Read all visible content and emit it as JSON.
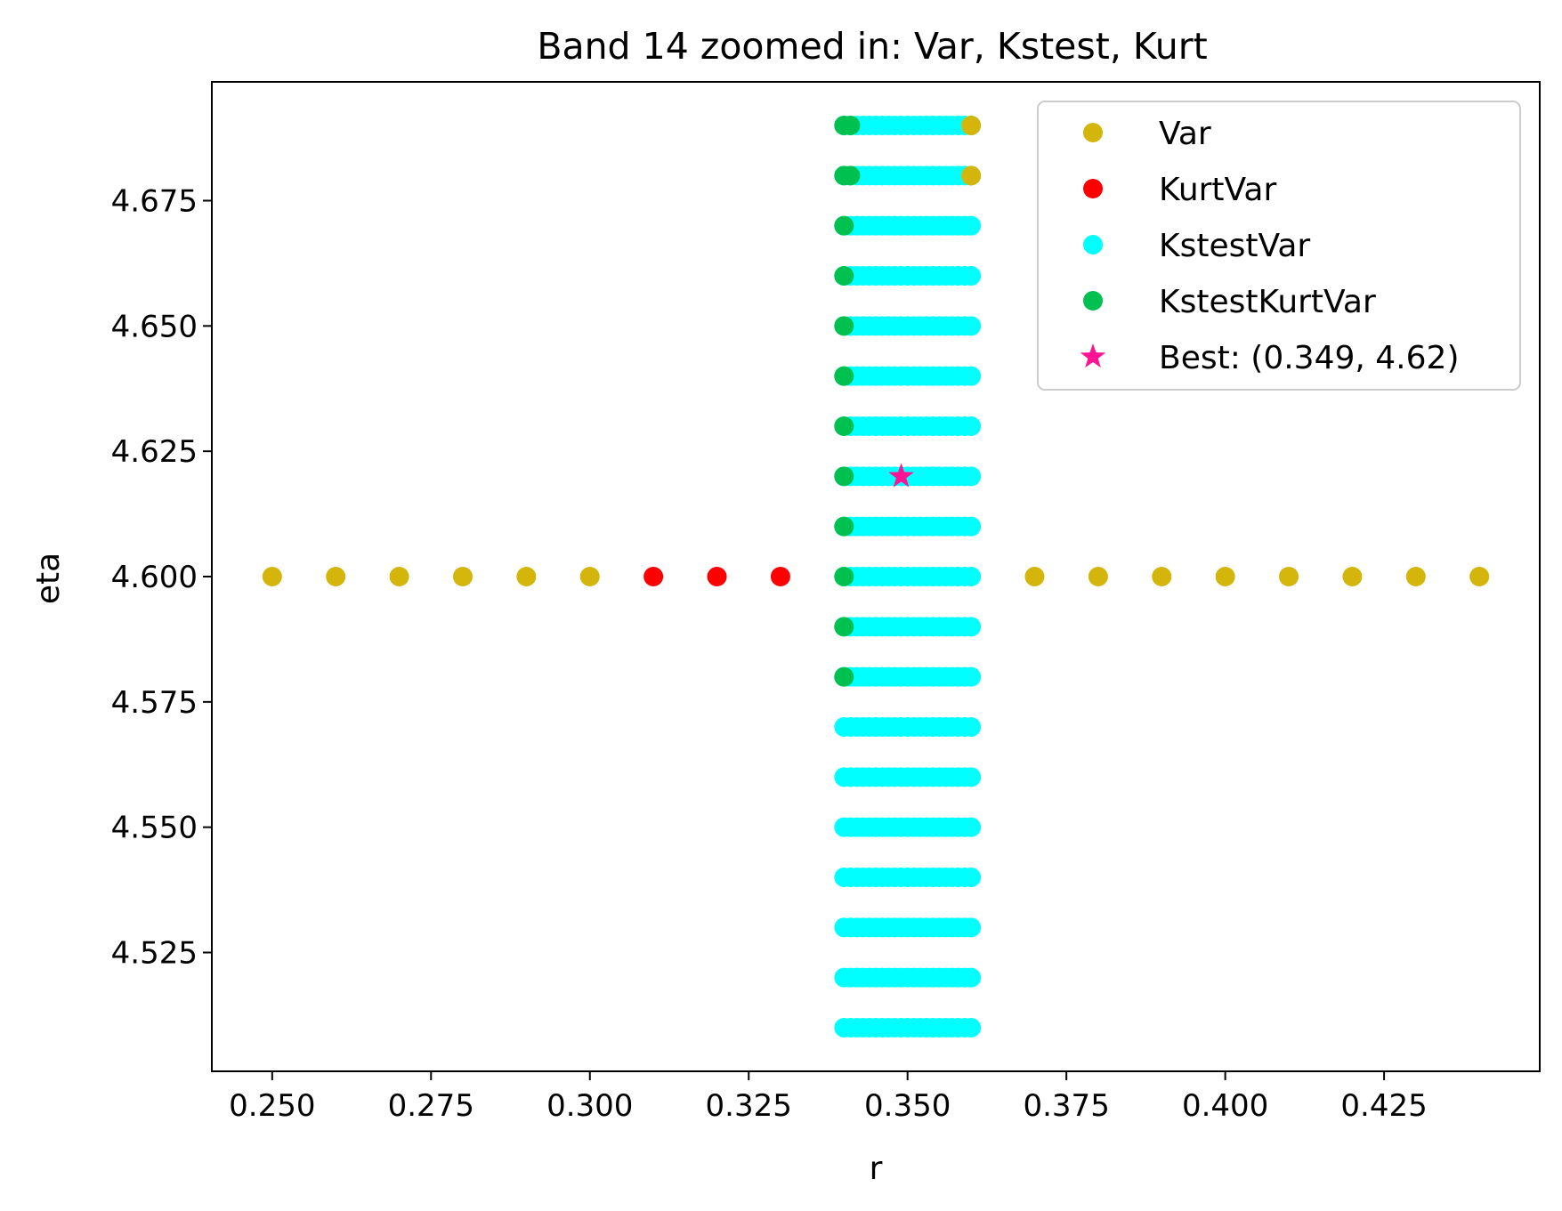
{
  "chart_data": {
    "type": "scatter",
    "title": "Band 14 zoomed in: Var, Kstest, Kurt",
    "xlabel": "r",
    "ylabel": "eta",
    "xlim": [
      0.2405,
      0.4495
    ],
    "ylim": [
      4.5013,
      4.6987
    ],
    "xticks": [
      "0.250",
      "0.275",
      "0.300",
      "0.325",
      "0.350",
      "0.375",
      "0.400",
      "0.425"
    ],
    "yticks": [
      "4.525",
      "4.550",
      "4.575",
      "4.600",
      "4.625",
      "4.650",
      "4.675"
    ],
    "grid": false,
    "legend_position": "top-right",
    "series": [
      {
        "name": "Var",
        "color": "#d4b50c",
        "marker": "circle",
        "points": [
          [
            0.25,
            4.6
          ],
          [
            0.26,
            4.6
          ],
          [
            0.27,
            4.6
          ],
          [
            0.28,
            4.6
          ],
          [
            0.29,
            4.6
          ],
          [
            0.3,
            4.6
          ],
          [
            0.37,
            4.6
          ],
          [
            0.38,
            4.6
          ],
          [
            0.39,
            4.6
          ],
          [
            0.4,
            4.6
          ],
          [
            0.41,
            4.6
          ],
          [
            0.42,
            4.6
          ],
          [
            0.43,
            4.6
          ],
          [
            0.44,
            4.6
          ],
          [
            0.36,
            4.68
          ],
          [
            0.36,
            4.69
          ]
        ]
      },
      {
        "name": "KurtVar",
        "color": "#ff0000",
        "marker": "circle",
        "points": [
          [
            0.31,
            4.6
          ],
          [
            0.32,
            4.6
          ],
          [
            0.33,
            4.6
          ]
        ]
      },
      {
        "name": "KstestVar",
        "color": "#00ffff",
        "marker": "circle",
        "r_range": [
          0.34,
          0.36
        ],
        "r_step": 0.001,
        "eta_values": [
          4.51,
          4.52,
          4.53,
          4.54,
          4.55,
          4.56,
          4.57,
          4.58,
          4.59,
          4.6,
          4.61,
          4.62,
          4.63,
          4.64,
          4.65,
          4.66,
          4.67,
          4.68,
          4.69
        ]
      },
      {
        "name": "KstestKurtVar",
        "color": "#00c050",
        "marker": "circle",
        "points": [
          [
            0.34,
            4.58
          ],
          [
            0.34,
            4.59
          ],
          [
            0.34,
            4.6
          ],
          [
            0.34,
            4.61
          ],
          [
            0.34,
            4.62
          ],
          [
            0.34,
            4.63
          ],
          [
            0.34,
            4.64
          ],
          [
            0.34,
            4.65
          ],
          [
            0.34,
            4.66
          ],
          [
            0.34,
            4.67
          ],
          [
            0.34,
            4.68
          ],
          [
            0.341,
            4.68
          ],
          [
            0.34,
            4.69
          ],
          [
            0.341,
            4.69
          ]
        ]
      },
      {
        "name": "Best: (0.349, 4.62)",
        "color": "#ff1493",
        "marker": "star",
        "points": [
          [
            0.349,
            4.62
          ]
        ]
      }
    ]
  }
}
